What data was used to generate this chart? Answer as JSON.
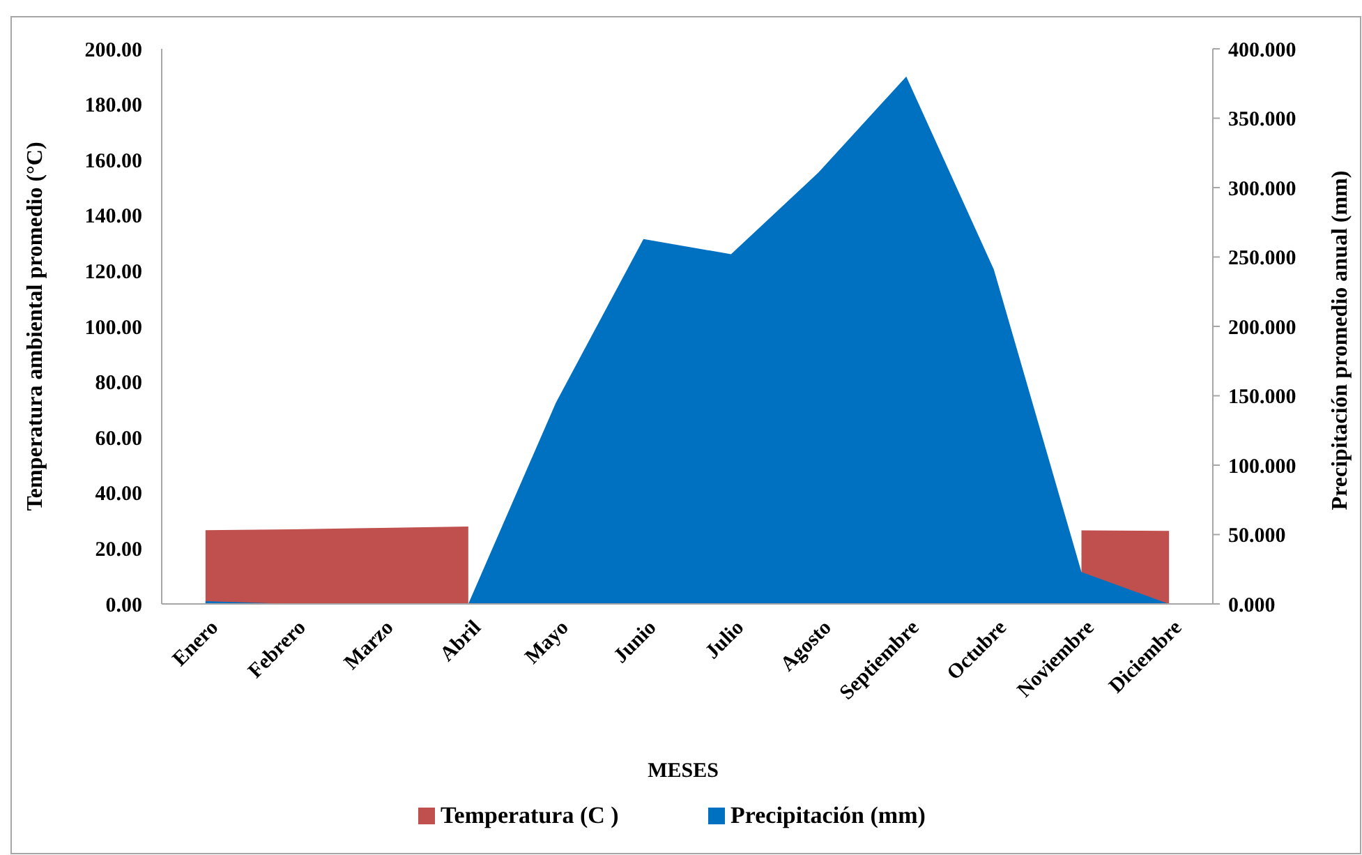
{
  "chart_data": {
    "type": "area",
    "xlabel": "MESES",
    "ylabel": "Temperatura  ambiental  promedio  (°C)",
    "y2label": "Precipitación  promedio  anual  (mm)",
    "categories": [
      "Enero",
      "Febrero",
      "Marzo",
      "Abril",
      "Mayo",
      "Junio",
      "Julio",
      "Agosto",
      "Septiembre",
      "Octubre",
      "Noviembre",
      "Diciembre"
    ],
    "series": [
      {
        "name": "Temperatura (C  )",
        "color": "#c0504d",
        "values": [
          26.6,
          26.9,
          27.4,
          27.9,
          null,
          null,
          null,
          null,
          null,
          null,
          26.5,
          26.3
        ]
      },
      {
        "name": "Precipitación (mm)",
        "color": "#0070c0",
        "axis": "y2",
        "values": [
          2,
          0,
          0,
          0,
          145,
          263,
          252,
          311,
          380,
          241,
          23,
          0
        ]
      }
    ],
    "ylim": [
      0,
      200
    ],
    "yticks": [
      {
        "value": 0,
        "label": "0.00"
      },
      {
        "value": 20,
        "label": "20.00"
      },
      {
        "value": 40,
        "label": "40.00"
      },
      {
        "value": 60,
        "label": "60.00"
      },
      {
        "value": 80,
        "label": "80.00"
      },
      {
        "value": 100,
        "label": "100.00"
      },
      {
        "value": 120,
        "label": "120.00"
      },
      {
        "value": 140,
        "label": "140.00"
      },
      {
        "value": 160,
        "label": "160.00"
      },
      {
        "value": 180,
        "label": "180.00"
      },
      {
        "value": 200,
        "label": "200.00"
      }
    ],
    "y2lim": [
      0,
      400
    ],
    "y2ticks": [
      {
        "value": 0,
        "label": "0.000"
      },
      {
        "value": 50,
        "label": "50.000"
      },
      {
        "value": 100,
        "label": "100.000"
      },
      {
        "value": 150,
        "label": "150.000"
      },
      {
        "value": 200,
        "label": "200.000"
      },
      {
        "value": 250,
        "label": "250.000"
      },
      {
        "value": 300,
        "label": "300.000"
      },
      {
        "value": 350,
        "label": "350.000"
      },
      {
        "value": 400,
        "label": "400.000"
      }
    ],
    "grid": false,
    "legend": "bottom"
  }
}
